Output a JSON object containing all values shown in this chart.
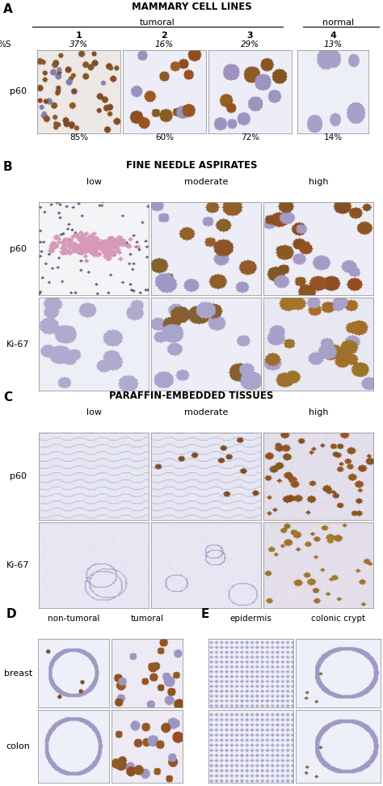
{
  "panel_A": {
    "title": "MAMMARY CELL LINES",
    "group1_label": "tumoral",
    "group2_label": "normal",
    "col_numbers": [
      "1",
      "2",
      "3",
      "4"
    ],
    "pct_s_label": "%S",
    "pct_s_values": [
      "37%",
      "16%",
      "29%",
      "13%"
    ],
    "row_label": "p60",
    "bottom_pct": [
      "85%",
      "60%",
      "72%",
      "14%"
    ]
  },
  "panel_B": {
    "title": "FINE NEEDLE ASPIRATES",
    "col_labels": [
      "low",
      "moderate",
      "high"
    ],
    "row_labels": [
      "p60",
      "Ki-67"
    ]
  },
  "panel_C": {
    "title": "PARAFFIN-EMBEDDED TISSUES",
    "col_labels": [
      "low",
      "moderate",
      "high"
    ],
    "row_labels": [
      "p60",
      "Ki-67"
    ]
  },
  "panel_D": {
    "label": "D",
    "col_labels": [
      "non-tumoral",
      "tumoral"
    ],
    "row_labels": [
      "breast",
      "colon"
    ]
  },
  "panel_E": {
    "label": "E",
    "col_labels": [
      "epidermis",
      "colonic crypt"
    ],
    "row_labels": [
      "",
      ""
    ]
  },
  "bg_color": "#ffffff",
  "figw": 4.74,
  "figh": 9.72,
  "dpi": 100
}
